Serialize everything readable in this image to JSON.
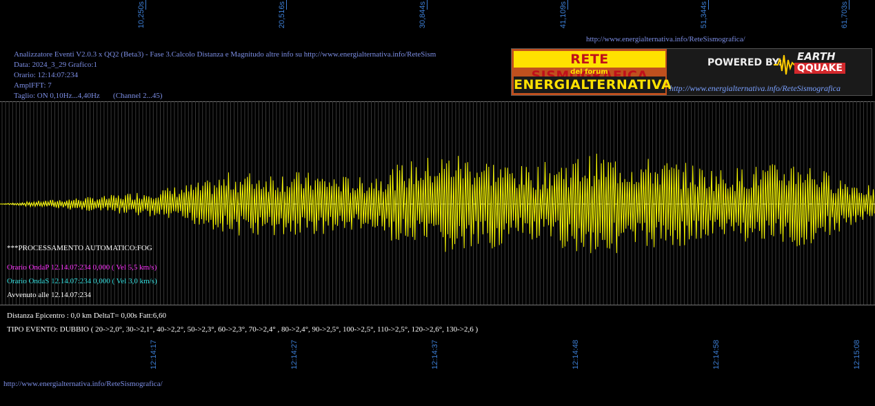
{
  "top_axis": [
    "10,250s",
    "20,516s",
    "30,844s",
    "41,109s",
    "51,344s",
    "61,703s"
  ],
  "bottom_axis": [
    "12:14:17",
    "12:14:27",
    "12:14:37",
    "12:14:48",
    "12:14:58",
    "12:15:08"
  ],
  "header": {
    "url_top": "http://www.energialternativa.info/ReteSismografica/",
    "line1": "Analizzatore Eventi V2.0.3 x QQ2 (Beta3) - Fase 3.Calcolo Distanza e Magnitudo altre info su http://www.energialternativa.info/ReteSism",
    "line2": "Data: 2024_3_29 Grafico:1",
    "line3": "Orario: 12:14:07:234",
    "line4": "AmplFFT: 7",
    "line5": "Taglio: ON 0,10Hz...4,40Hz       (Channel 2...45)"
  },
  "logo": {
    "rete": "RETE SISMOGRAFICA",
    "forum": "del forum",
    "energ": "ENERGIALTERNATIVA",
    "powered": "POWERED BY:",
    "earth": "EARTH",
    "qquake": "QQUAKE",
    "url": "http://www.energialternativa.info/ReteSismografica"
  },
  "processing": {
    "label": "***PROCESSAMENTO AUTOMATICO:FOG",
    "onda_p": "Orario OndaP 12.14.07:234  0,000 ( Vel 5,5 km/s)",
    "onda_s": "Orario OndaS 12.14.07:234  0,000 ( Vel 3,0 km/s)",
    "avvenuto": "Avvenuto alle 12.14.07:234"
  },
  "result": {
    "distanza": "Distanza Epicentro : 0,0 km DeltaT= 0,00s  Fatt:6,60",
    "tipo": "TIPO EVENTO: DUBBIO ( 20->2,0°, 30->2,1°, 40->2,2°, 50->2,3°, 60->2,3°, 70->2,4° , 80->2,4°, 90->2,5°, 100->2,5°, 110->2,5°, 120->2,6°, 130->2,6 )"
  },
  "footer_url": "http://www.energialternativa.info/ReteSismografica/",
  "colors": {
    "trace": "#ffff00",
    "axis": "#3d7fd6",
    "onda_p": "#ff33ff",
    "onda_s": "#33e0e0",
    "header": "#7d8fe6"
  }
}
